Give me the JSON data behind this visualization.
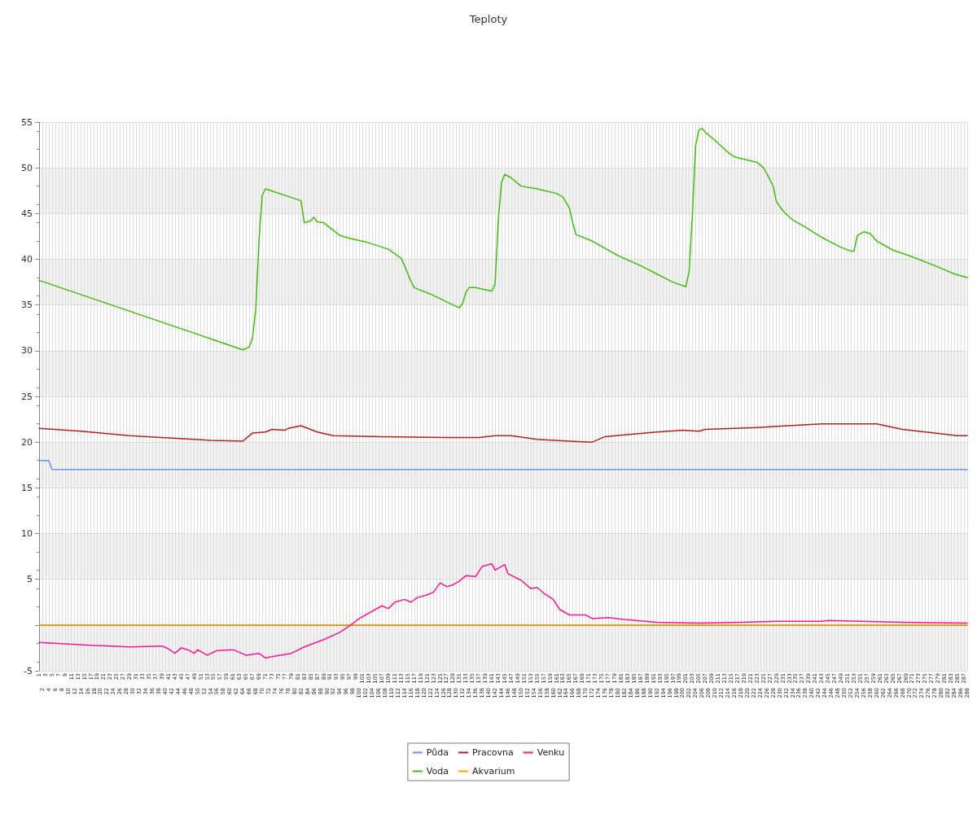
{
  "chart_data": {
    "type": "line",
    "title": "Teploty",
    "categories": [
      "1",
      "2",
      "3",
      "4",
      "5",
      "6",
      "7",
      "8",
      "9",
      "10",
      "11",
      "12",
      "13",
      "14",
      "15",
      "16",
      "17",
      "18",
      "19",
      "20",
      "21",
      "22",
      "23",
      "24",
      "25",
      "26",
      "27",
      "28",
      "29",
      "30",
      "31",
      "32",
      "33",
      "34",
      "35",
      "36",
      "37",
      "38",
      "39",
      "40",
      "41",
      "42",
      "43",
      "44",
      "45",
      "46",
      "47",
      "48",
      "49",
      "50",
      "51",
      "52",
      "53",
      "54",
      "55",
      "56",
      "57",
      "58",
      "59",
      "60",
      "61",
      "62",
      "63",
      "64",
      "65",
      "66",
      "67",
      "68",
      "69",
      "70",
      "71",
      "72",
      "73",
      "74",
      "75",
      "76",
      "77",
      "78",
      "79",
      "80",
      "81",
      "82",
      "83",
      "84",
      "85",
      "86",
      "87",
      "88",
      "89",
      "90",
      "91",
      "92",
      "93",
      "94",
      "95",
      "96",
      "97",
      "98",
      "99",
      "100",
      "101",
      "102",
      "103",
      "104",
      "105",
      "106",
      "107",
      "108",
      "109",
      "110",
      "111",
      "112",
      "113",
      "114",
      "115",
      "116",
      "117",
      "118",
      "119",
      "120",
      "121",
      "122",
      "123",
      "124",
      "125",
      "126",
      "127",
      "128",
      "129",
      "130",
      "131",
      "132",
      "133",
      "134",
      "135",
      "136",
      "137",
      "138",
      "139",
      "140",
      "141",
      "142",
      "143",
      "144",
      "145",
      "146",
      "147",
      "148",
      "149",
      "150",
      "151",
      "152",
      "153",
      "154",
      "155",
      "156",
      "157",
      "158",
      "159",
      "160",
      "161",
      "162",
      "163",
      "164",
      "165",
      "166",
      "167",
      "168",
      "169",
      "170",
      "171",
      "172",
      "173",
      "174",
      "175",
      "176",
      "177",
      "178",
      "179",
      "180",
      "181",
      "182",
      "183",
      "184",
      "185",
      "186",
      "187",
      "188",
      "189",
      "190",
      "191",
      "192",
      "193",
      "194",
      "195",
      "196",
      "197",
      "198",
      "199",
      "200",
      "201",
      "202",
      "203",
      "204",
      "205",
      "206",
      "207",
      "208",
      "209",
      "210",
      "211",
      "212",
      "213",
      "214",
      "215",
      "216",
      "217",
      "218",
      "219",
      "220",
      "221",
      "222",
      "223",
      "224",
      "225",
      "226",
      "227",
      "228",
      "229",
      "230",
      "231",
      "232",
      "233",
      "234",
      "235",
      "236",
      "237",
      "238",
      "239",
      "240",
      "241",
      "242",
      "243",
      "244",
      "245",
      "246",
      "247",
      "248",
      "249",
      "250",
      "251",
      "252",
      "253",
      "254",
      "255",
      "256",
      "257",
      "258",
      "259",
      "260",
      "261",
      "262",
      "263",
      "264",
      "265",
      "266",
      "267",
      "268",
      "269",
      "270",
      "271",
      "272",
      "273",
      "274",
      "275",
      "276",
      "277",
      "278",
      "279",
      "280",
      "281",
      "282",
      "283",
      "284",
      "285",
      "286",
      "287",
      "288"
    ],
    "series": [
      {
        "name": "Půda",
        "color": "#6495ed",
        "x": [
          "1",
          "4",
          "5",
          "288"
        ],
        "values": [
          18,
          18,
          17,
          17
        ]
      },
      {
        "name": "Voda",
        "color": "#44bb11",
        "x": [
          "1",
          "64",
          "66",
          "67",
          "68",
          "69",
          "70",
          "71",
          "82",
          "83",
          "85",
          "86",
          "87",
          "89",
          "94",
          "97",
          "102",
          "109",
          "113",
          "114",
          "116",
          "117",
          "122",
          "129",
          "131",
          "132",
          "133",
          "134",
          "136",
          "141",
          "142",
          "143",
          "144",
          "145",
          "147",
          "150",
          "155",
          "161",
          "163",
          "165",
          "166",
          "167",
          "172",
          "180",
          "187",
          "192",
          "197",
          "201",
          "202",
          "203",
          "204",
          "205",
          "206",
          "207",
          "210",
          "214",
          "216",
          "223",
          "225",
          "226",
          "228",
          "229",
          "231",
          "234",
          "238",
          "243",
          "249",
          "252",
          "253",
          "254",
          "256",
          "258",
          "260",
          "265",
          "270",
          "278",
          "284",
          "288"
        ],
        "values": [
          37.7,
          30.1,
          30.4,
          31.4,
          34.5,
          42.1,
          47,
          47.7,
          46.4,
          44,
          44.2,
          44.6,
          44.1,
          44,
          42.6,
          42.3,
          41.9,
          41.1,
          40.1,
          39.3,
          37.6,
          36.9,
          36.2,
          35,
          34.7,
          35.2,
          36.4,
          36.9,
          36.9,
          36.5,
          37.3,
          44.3,
          48.4,
          49.3,
          48.9,
          48,
          47.7,
          47.2,
          46.8,
          45.6,
          44,
          42.7,
          42,
          40.4,
          39.3,
          38.4,
          37.5,
          37,
          38.7,
          44.7,
          52.4,
          54.1,
          54.3,
          53.9,
          53,
          51.7,
          51.2,
          50.6,
          50,
          49.4,
          48,
          46.3,
          45.3,
          44.3,
          43.5,
          42.4,
          41.3,
          40.9,
          40.9,
          42.6,
          43,
          42.8,
          42,
          41,
          40.4,
          39.3,
          38.4,
          38
        ]
      },
      {
        "name": "Pracovna",
        "color": "#b22222",
        "x": [
          "1",
          "14",
          "29",
          "54",
          "64",
          "67",
          "71",
          "73",
          "77",
          "78",
          "82",
          "87",
          "92",
          "107",
          "127",
          "137",
          "142",
          "147",
          "155",
          "165",
          "172",
          "176",
          "182",
          "192",
          "200",
          "205",
          "207",
          "223",
          "228",
          "243",
          "253",
          "260",
          "268",
          "278",
          "285",
          "288"
        ],
        "values": [
          21.5,
          21.2,
          20.7,
          20.2,
          20.1,
          21,
          21.1,
          21.4,
          21.3,
          21.5,
          21.8,
          21.1,
          20.7,
          20.6,
          20.5,
          20.5,
          20.7,
          20.7,
          20.3,
          20.1,
          20,
          20.6,
          20.8,
          21.1,
          21.3,
          21.2,
          21.4,
          21.6,
          21.7,
          22,
          22,
          22,
          21.4,
          21,
          20.7,
          20.7
        ]
      },
      {
        "name": "Akvarium",
        "color": "#ffa500",
        "x": [
          "1",
          "288"
        ],
        "values": [
          0,
          0
        ]
      },
      {
        "name": "Venku",
        "color": "#ff1493",
        "x": [
          "1",
          "16",
          "29",
          "39",
          "41",
          "43",
          "45",
          "47",
          "49",
          "50",
          "53",
          "56",
          "61",
          "65",
          "69",
          "71",
          "74",
          "79",
          "83",
          "89",
          "94",
          "97",
          "100",
          "107",
          "109",
          "111",
          "114",
          "116",
          "118",
          "121",
          "123",
          "125",
          "127",
          "129",
          "131",
          "133",
          "136",
          "138",
          "141",
          "142",
          "144",
          "145",
          "146",
          "150",
          "153",
          "155",
          "157",
          "160",
          "162",
          "165",
          "170",
          "172",
          "177",
          "182",
          "192",
          "205",
          "218",
          "230",
          "243",
          "245",
          "255",
          "268",
          "288"
        ],
        "values": [
          -1.9,
          -2.2,
          -2.4,
          -2.3,
          -2.6,
          -3.1,
          -2.5,
          -2.7,
          -3.1,
          -2.7,
          -3.3,
          -2.8,
          -2.7,
          -3.3,
          -3.1,
          -3.6,
          -3.4,
          -3.1,
          -2.4,
          -1.6,
          -0.8,
          -0.1,
          0.7,
          2.1,
          1.8,
          2.5,
          2.8,
          2.5,
          3,
          3.3,
          3.6,
          4.6,
          4.2,
          4.4,
          4.8,
          5.4,
          5.3,
          6.4,
          6.7,
          6,
          6.4,
          6.6,
          5.6,
          4.9,
          4,
          4.1,
          3.5,
          2.8,
          1.7,
          1.1,
          1.1,
          0.7,
          0.8,
          0.6,
          0.3,
          0.2,
          0.3,
          0.4,
          0.4,
          0.5,
          0.4,
          0.3,
          0.2
        ]
      }
    ],
    "ylim": [
      -5,
      55
    ],
    "yticks": [
      -5,
      {
        "value": 0,
        "label": null
      },
      5,
      10,
      15,
      20,
      25,
      30,
      35,
      40,
      45,
      50,
      55
    ],
    "grid": true,
    "legend": "bottom",
    "line_style": "solid"
  }
}
